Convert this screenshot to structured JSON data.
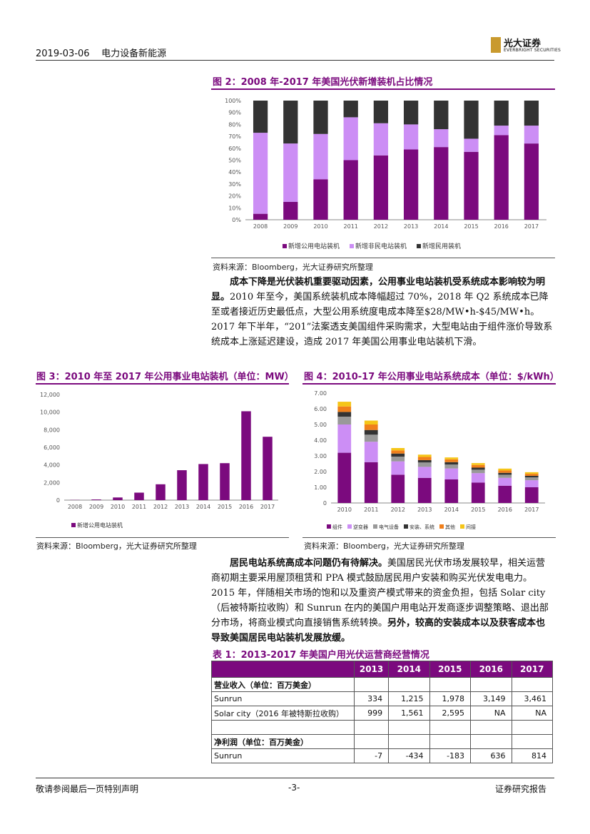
{
  "header": {
    "date": "2019-03-06",
    "section": "电力设备新能源",
    "logo_cn": "光大证券",
    "logo_en": "EVERBRIGHT SECURITIES"
  },
  "fig2": {
    "title": "图 2：2008 年-2017 年美国光伏新增装机占比情况",
    "source": "资料来源：Bloomberg，光大证券研究所整理",
    "chart_data": {
      "type": "bar",
      "stacked": true,
      "categories": [
        "2008",
        "2009",
        "2010",
        "2011",
        "2012",
        "2013",
        "2014",
        "2015",
        "2016",
        "2017"
      ],
      "series": [
        {
          "name": "新增公用电站装机",
          "color": "#7b0a7e",
          "values": [
            5,
            15,
            34,
            50,
            54,
            59,
            61,
            57,
            71,
            64
          ]
        },
        {
          "name": "新增非民电站装机",
          "color": "#cc8ef5",
          "values": [
            68,
            49,
            38,
            36,
            27,
            21,
            15,
            11,
            8,
            15
          ]
        },
        {
          "name": "新增民用装机",
          "color": "#333333",
          "values": [
            27,
            36,
            28,
            14,
            19,
            20,
            24,
            32,
            21,
            21
          ]
        }
      ],
      "yticks": [
        "0%",
        "10%",
        "20%",
        "30%",
        "40%",
        "50%",
        "60%",
        "70%",
        "80%",
        "90%",
        "100%"
      ],
      "ylim": [
        0,
        100
      ]
    }
  },
  "para1": {
    "lead": "成本下降是光伏装机重要驱动因素，公用事业电站装机受系统成本影响较为明显。",
    "body": "2010 年至今，美国系统装机成本降幅超过 70%，2018 年 Q2 系统成本已降至或者接近历史最低点，大型公用系统度电成本降至$28/MW•h-$45/MW•h。2017 年下半年，“201”法案透支美国组件采购需求，大型电站由于组件涨价导致系统成本上涨延迟建设，造成 2017 年美国公用事业电站装机下滑。"
  },
  "fig3": {
    "title": "图 3：2010 年至 2017 年公用事业电站装机（单位：MW）",
    "source": "资料来源：Bloomberg，光大证券研究所整理",
    "chart_data": {
      "type": "bar",
      "categories": [
        "2008",
        "2009",
        "2010",
        "2011",
        "2012",
        "2013",
        "2014",
        "2015",
        "2016",
        "2017"
      ],
      "series": [
        {
          "name": "新增公用电站装机",
          "color": "#7b0a7e",
          "values": [
            22,
            75,
            300,
            850,
            1800,
            3400,
            4100,
            4200,
            10100,
            7200
          ]
        }
      ],
      "yticks": [
        "0",
        "2,000",
        "4,000",
        "6,000",
        "8,000",
        "10,000",
        "12,000"
      ],
      "ylim": [
        0,
        12000
      ]
    }
  },
  "fig4": {
    "title": "图 4：2010-17 年公用事业电站系统成本（单位：$/kWh）",
    "chart_data": {
      "type": "bar",
      "stacked": true,
      "categories": [
        "2010",
        "2011",
        "2012",
        "2013",
        "2014",
        "2015",
        "2016",
        "2017"
      ],
      "series": [
        {
          "name": "组件",
          "color": "#7b0a7e",
          "values": [
            3.2,
            2.6,
            1.8,
            1.6,
            1.5,
            1.3,
            1.1,
            1.0
          ]
        },
        {
          "name": "逆变器",
          "color": "#cc8ef5",
          "values": [
            1.8,
            1.3,
            0.85,
            0.7,
            0.7,
            0.6,
            0.5,
            0.45
          ]
        },
        {
          "name": "电气设备",
          "color": "#999999",
          "values": [
            0.5,
            0.45,
            0.3,
            0.28,
            0.25,
            0.22,
            0.2,
            0.18
          ]
        },
        {
          "name": "安装、系统",
          "color": "#333333",
          "values": [
            0.3,
            0.3,
            0.2,
            0.15,
            0.15,
            0.13,
            0.12,
            0.1
          ]
        },
        {
          "name": "其他",
          "color": "#f07f1b",
          "values": [
            0.35,
            0.35,
            0.2,
            0.2,
            0.18,
            0.17,
            0.15,
            0.13
          ]
        },
        {
          "name": "间接",
          "color": "#f5c518",
          "values": [
            0.3,
            0.25,
            0.15,
            0.15,
            0.12,
            0.12,
            0.12,
            0.1
          ]
        }
      ],
      "yticks": [
        "0",
        "1.00",
        "2.00",
        "3.00",
        "4.00",
        "5.00",
        "6.00",
        "7.00"
      ],
      "ylim": [
        0,
        7
      ]
    }
  },
  "para2": {
    "lead": "居民电站系统高成本问题仍有待解决。",
    "body": "美国居民光伏市场发展较早，相关运营商初期主要采用屋顶租赁和 PPA 模式鼓励居民用户安装和购买光伏发电电力。2015 年，伴随相关市场的饱和以及重资产模式带来的资金负担，包括 Solar city（后被特斯拉收购）和 Sunrun 在内的美国户用电站开发商逐步调整策略、退出部分市场，将商业模式向直接销售系统转换。",
    "tail": "另外，较高的安装成本以及获客成本也导致美国居民电站装机发展放缓。"
  },
  "table1": {
    "title": "表 1：2013-2017 年美国户用光伏运营商经营情况",
    "years": [
      "2013",
      "2014",
      "2015",
      "2016",
      "2017"
    ],
    "rows": [
      {
        "label": "营业收入（单位：百万美金）",
        "bold": true,
        "values": [
          "",
          "",
          "",
          "",
          ""
        ]
      },
      {
        "label": "Sunrun",
        "bold": false,
        "values": [
          "334",
          "1,215",
          "1,978",
          "3,149",
          "3,461"
        ]
      },
      {
        "label": "Solar city（2016 年被特斯拉收购）",
        "bold": false,
        "values": [
          "999",
          "1,561",
          "2,595",
          "NA",
          "NA"
        ]
      },
      {
        "label": "",
        "bold": false,
        "values": [
          "",
          "",
          "",
          "",
          ""
        ]
      },
      {
        "label": "净利润（单位：百万美金）",
        "bold": true,
        "values": [
          "",
          "",
          "",
          "",
          ""
        ]
      },
      {
        "label": "Sunrun",
        "bold": false,
        "values": [
          "-7",
          "-434",
          "-183",
          "636",
          "814"
        ]
      }
    ]
  },
  "footer": {
    "left": "敬请参阅最后一页特别声明",
    "center": "-3-",
    "right": "证券研究报告"
  }
}
